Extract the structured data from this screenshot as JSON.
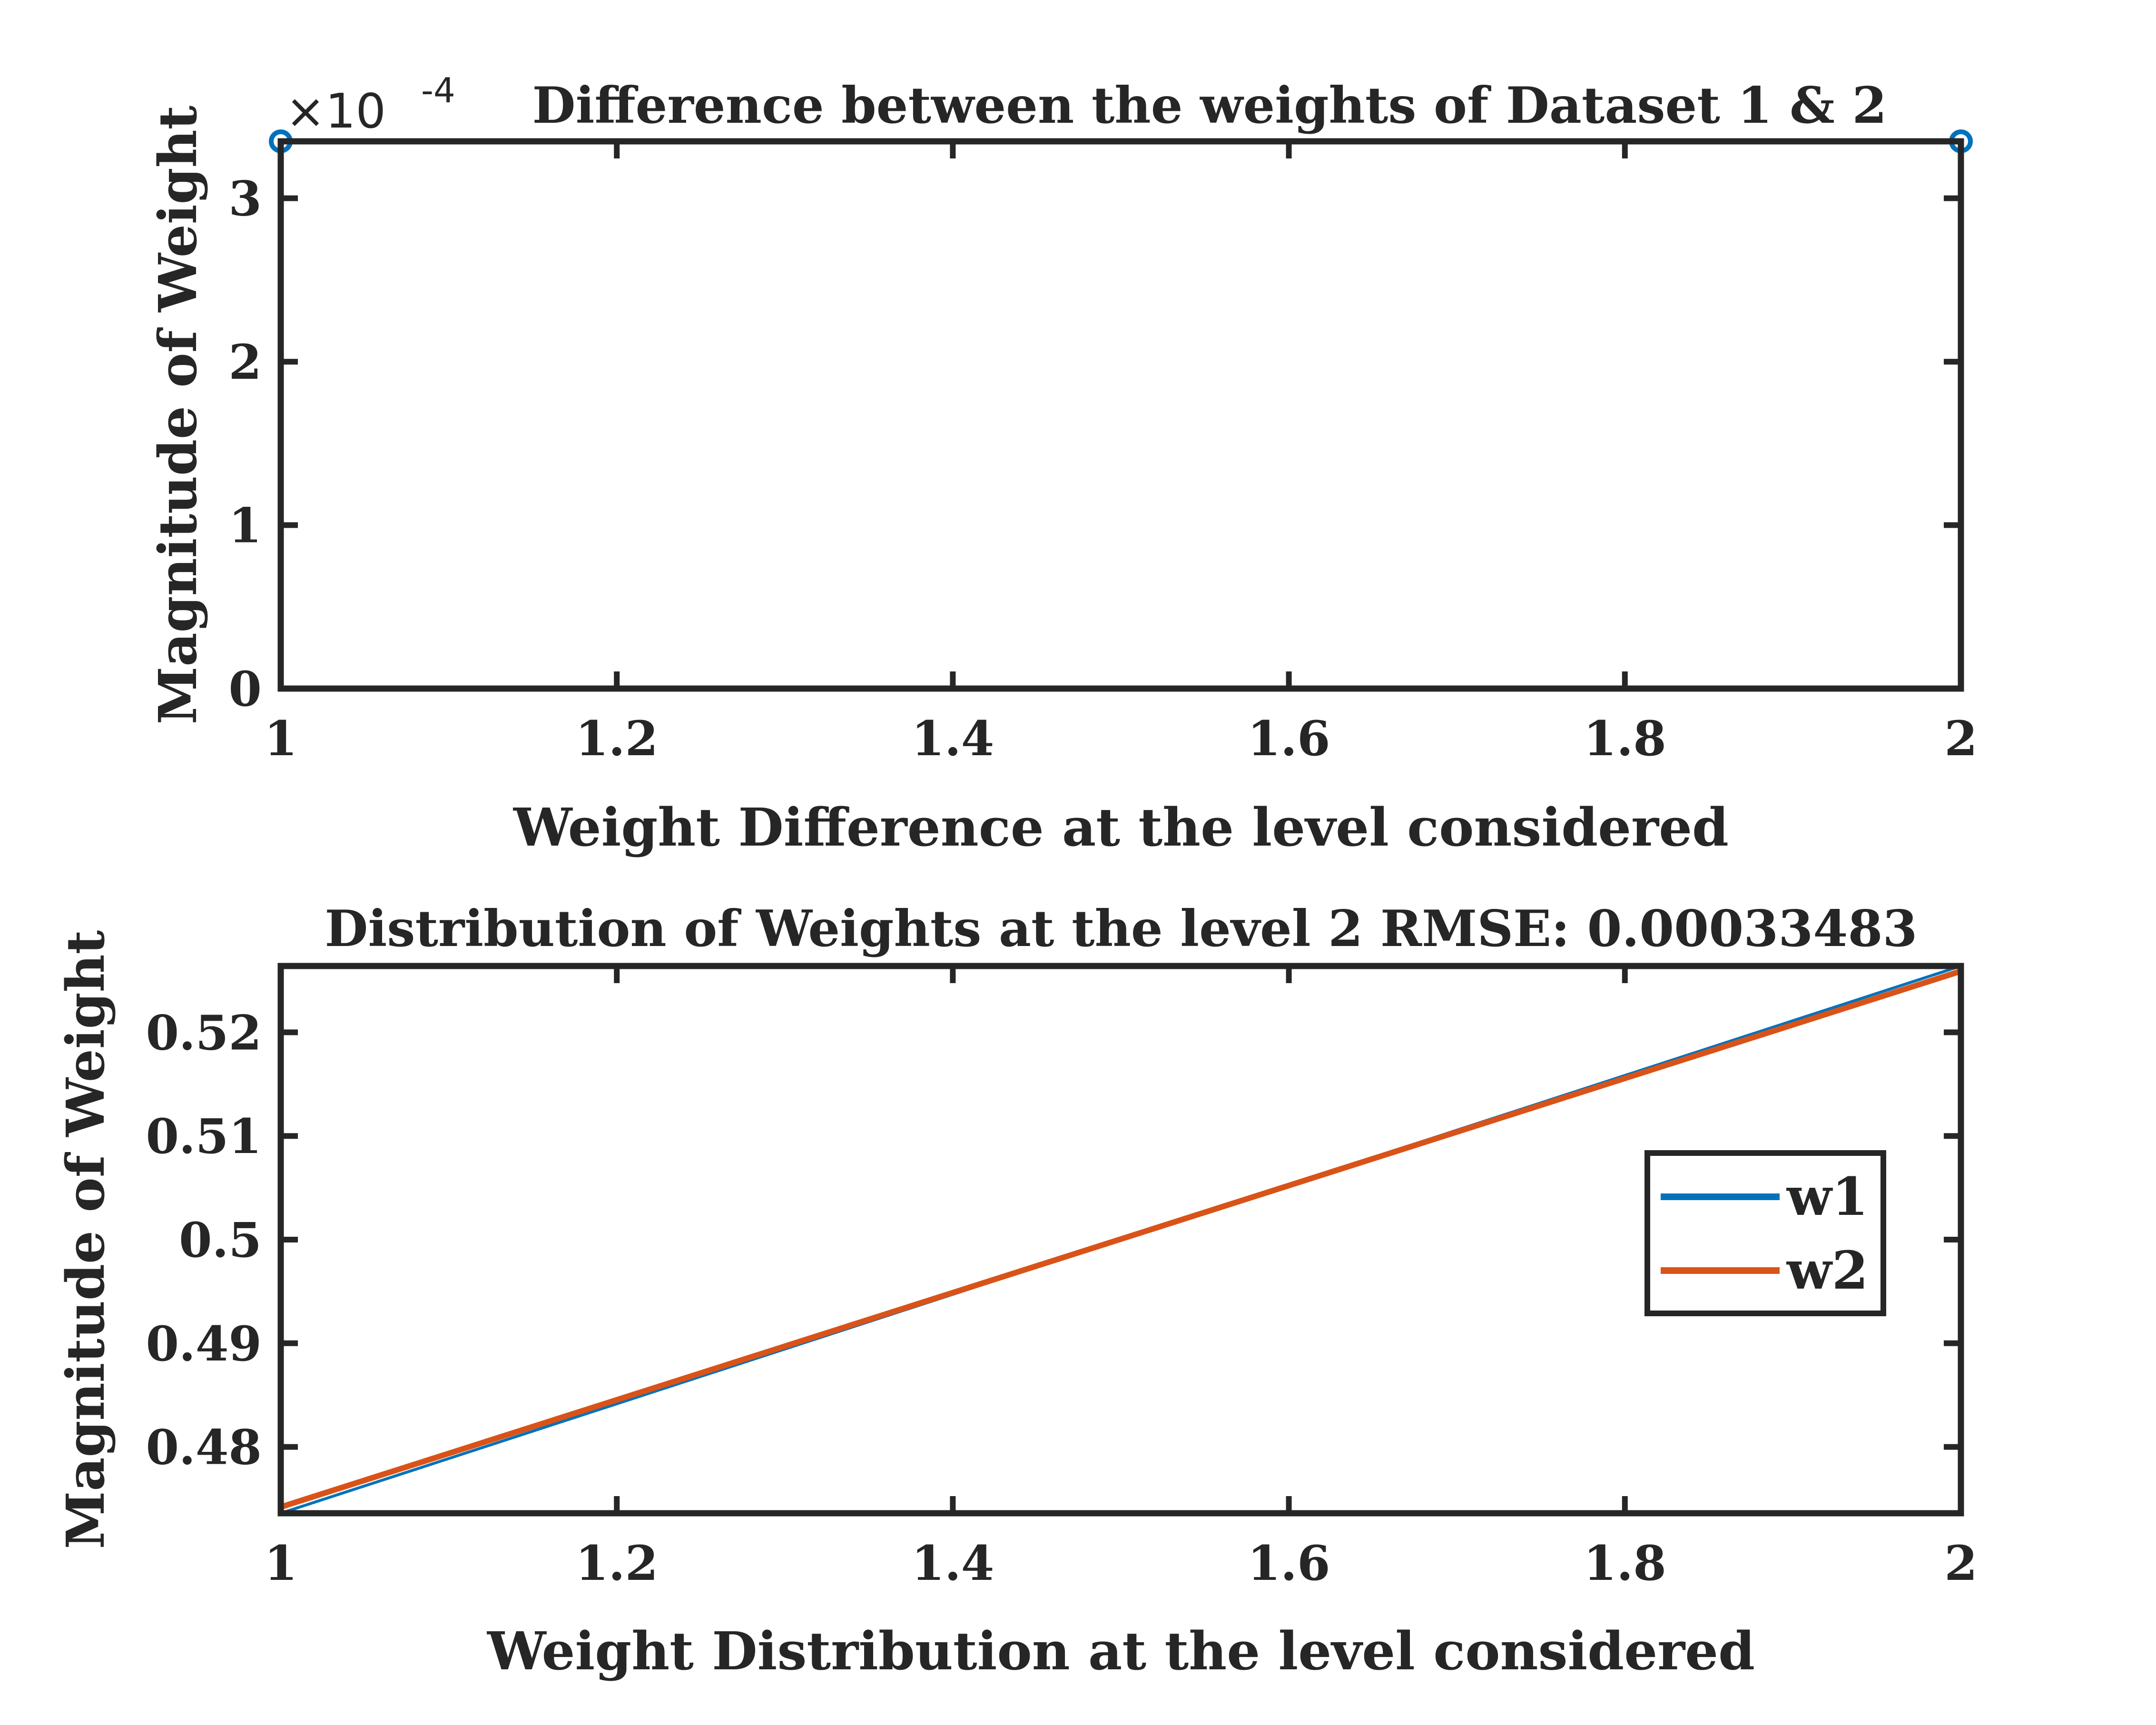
{
  "chart_data": [
    {
      "type": "stem",
      "title": "Difference between the weights of Dataset 1 & 2",
      "xlabel": "Weight Difference at the level considered",
      "ylabel": "Magnitude of Weight",
      "xlim": [
        1,
        2
      ],
      "ylim": [
        0,
        3.3483
      ],
      "y_multiplier": "×10",
      "y_exponent": "-4",
      "x": [
        1,
        2
      ],
      "values": [
        3.3483,
        3.3483
      ],
      "xticks": [
        1,
        1.2,
        1.4,
        1.6,
        1.8,
        2
      ],
      "xtick_labels": [
        "1",
        "1.2",
        "1.4",
        "1.6",
        "1.8",
        "2"
      ],
      "yticks": [
        0,
        1,
        2,
        3
      ],
      "ytick_labels": [
        "0",
        "1",
        "2",
        "3"
      ],
      "color": "#0072BD"
    },
    {
      "type": "line",
      "title": "Distribution of Weights at the level 2 RMSE: 0.00033483",
      "xlabel": "Weight Distribution at the level considered",
      "ylabel": "Magnitude of Weight",
      "xlim": [
        1,
        2
      ],
      "ylim": [
        0.4736,
        0.5264
      ],
      "x": [
        1,
        2
      ],
      "series": [
        {
          "name": "w1",
          "values": [
            0.4736,
            0.5264
          ],
          "color": "#0072BD"
        },
        {
          "name": "w2",
          "values": [
            0.4742,
            0.5259
          ],
          "color": "#D95319"
        }
      ],
      "xticks": [
        1,
        1.2,
        1.4,
        1.6,
        1.8,
        2
      ],
      "xtick_labels": [
        "1",
        "1.2",
        "1.4",
        "1.6",
        "1.8",
        "2"
      ],
      "yticks": [
        0.48,
        0.49,
        0.5,
        0.51,
        0.52
      ],
      "ytick_labels": [
        "0.48",
        "0.49",
        "0.5",
        "0.51",
        "0.52"
      ],
      "legend": "right"
    }
  ]
}
